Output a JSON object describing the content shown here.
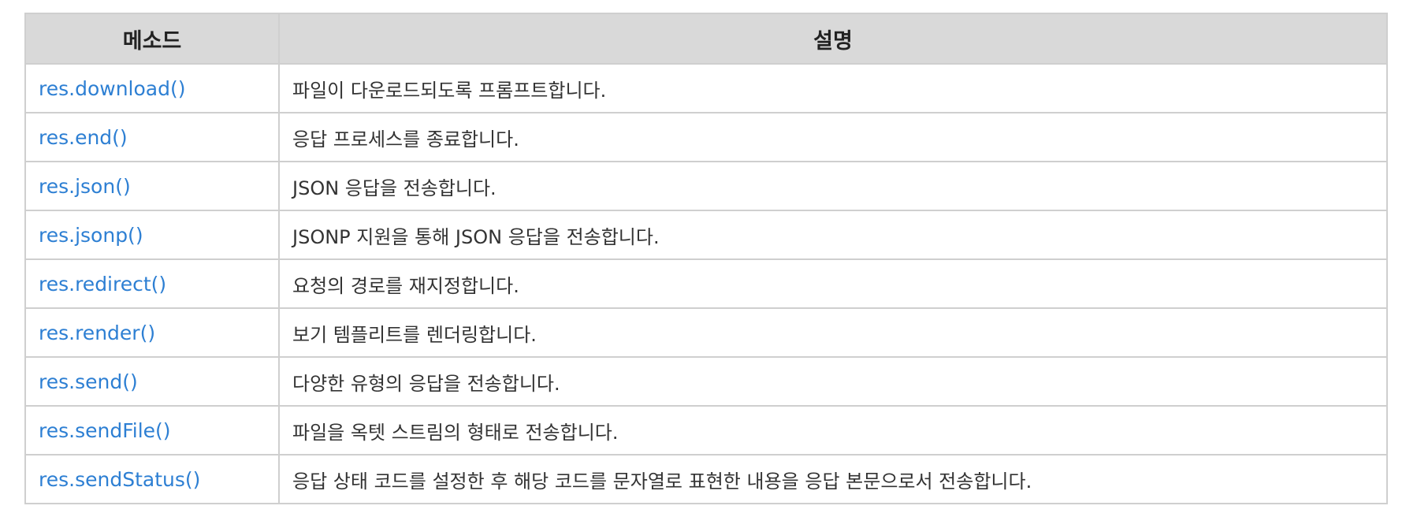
{
  "table": {
    "headers": [
      "메소드",
      "설명"
    ],
    "rows": [
      {
        "method": "res.download()",
        "description": "파일이 다운로드되도록 프롬프트합니다."
      },
      {
        "method": "res.end()",
        "description": "응답 프로세스를 종료합니다."
      },
      {
        "method": "res.json()",
        "description": "JSON 응답을 전송합니다."
      },
      {
        "method": "res.jsonp()",
        "description": "JSONP 지원을 통해 JSON 응답을 전송합니다."
      },
      {
        "method": "res.redirect()",
        "description": "요청의 경로를 재지정합니다."
      },
      {
        "method": "res.render()",
        "description": "보기 템플리트를 렌더링합니다."
      },
      {
        "method": "res.send()",
        "description": "다양한 유형의 응답을 전송합니다."
      },
      {
        "method": "res.sendFile()",
        "description": "파일을 옥텟 스트림의 형태로 전송합니다."
      },
      {
        "method": "res.sendStatus()",
        "description": "응답 상태 코드를 설정한 후 해당 코드를 문자열로 표현한 내용을 응답 본문으로서 전송합니다."
      }
    ]
  },
  "colors": {
    "link": "#2d7fd3",
    "header_bg": "#d9d9d9",
    "border": "#cfcfcf"
  }
}
